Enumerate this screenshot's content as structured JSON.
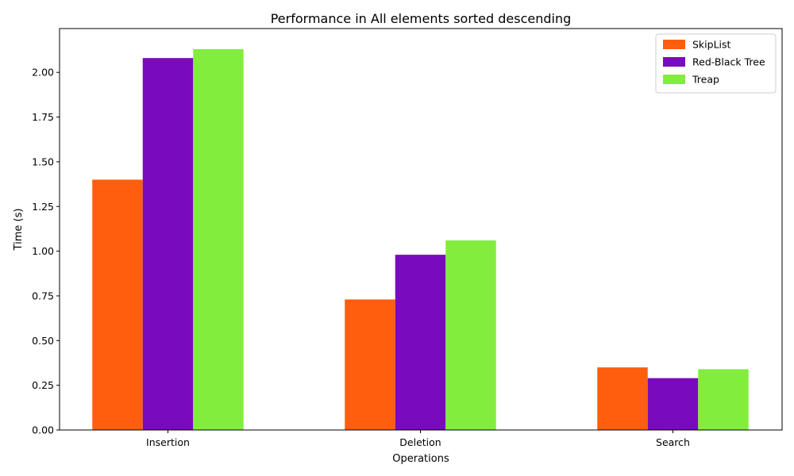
{
  "chart_data": {
    "type": "bar",
    "title": "Performance in All elements sorted descending",
    "xlabel": "Operations",
    "ylabel": "Time (s)",
    "categories": [
      "Insertion",
      "Deletion",
      "Search"
    ],
    "ylim": [
      0,
      2.245
    ],
    "yticks": [
      "0.00",
      "0.25",
      "0.50",
      "0.75",
      "1.00",
      "1.25",
      "1.50",
      "1.75",
      "2.00"
    ],
    "grid": false,
    "legend_position": "top-right",
    "series": [
      {
        "name": "SkipList",
        "color": "#ff5e0e",
        "values": [
          1.4,
          0.73,
          0.35
        ]
      },
      {
        "name": "Red-Black Tree",
        "color": "#790abd",
        "values": [
          2.08,
          0.98,
          0.29
        ]
      },
      {
        "name": "Treap",
        "color": "#83ed3e",
        "values": [
          2.13,
          1.06,
          0.34
        ]
      }
    ]
  }
}
